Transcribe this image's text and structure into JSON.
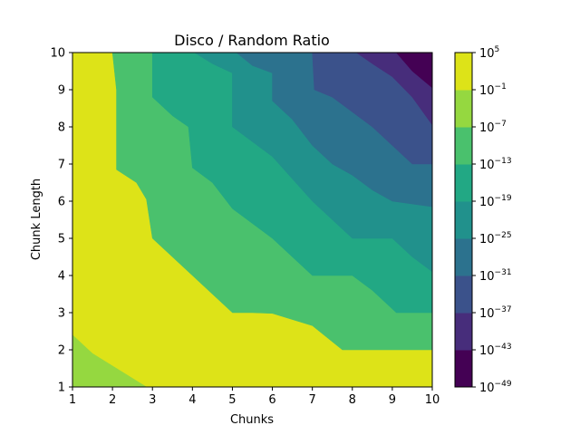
{
  "chart_data": {
    "type": "contour",
    "title": "Disco / Random Ratio",
    "xlabel": "Chunks",
    "ylabel": "Chunk Length",
    "xlim": [
      1,
      10
    ],
    "ylim": [
      1,
      10
    ],
    "x_ticks": [
      "1",
      "2",
      "3",
      "4",
      "5",
      "6",
      "7",
      "8",
      "9",
      "10"
    ],
    "y_ticks": [
      "1",
      "2",
      "3",
      "4",
      "5",
      "6",
      "7",
      "8",
      "9",
      "10"
    ],
    "z_scale": "log",
    "colorbar": {
      "levels_exponent": [
        -49,
        -43,
        -37,
        -31,
        -25,
        -19,
        -13,
        -7,
        -1,
        5
      ],
      "labels": [
        {
          "base": "10",
          "exp": "−49"
        },
        {
          "base": "10",
          "exp": "−43"
        },
        {
          "base": "10",
          "exp": "−37"
        },
        {
          "base": "10",
          "exp": "−31"
        },
        {
          "base": "10",
          "exp": "−25"
        },
        {
          "base": "10",
          "exp": "−19"
        },
        {
          "base": "10",
          "exp": "−13"
        },
        {
          "base": "10",
          "exp": "−7"
        },
        {
          "base": "10",
          "exp": "−1"
        },
        {
          "base": "10",
          "exp": "5"
        }
      ],
      "colors": [
        "#440154",
        "#472d7b",
        "#3b528b",
        "#2c728e",
        "#21918c",
        "#28ae80",
        "#5ec962",
        "#addc30",
        "#fde725"
      ],
      "display_colors": [
        "#440154",
        "#472d7b",
        "#3b528b",
        "#2c728e",
        "#21918c",
        "#22a884",
        "#4ac16d",
        "#95d840",
        "#dde318"
      ]
    },
    "contours": [
      {
        "upper_exponent": -1,
        "boundary": [
          [
            1,
            2.4
          ],
          [
            1.5,
            1.9
          ],
          [
            2.85,
            1
          ]
        ]
      },
      {
        "upper_exponent": -7,
        "boundary": [
          [
            2,
            10
          ],
          [
            2.1,
            9
          ],
          [
            2.1,
            6.85
          ],
          [
            2.6,
            6.5
          ],
          [
            2.85,
            6.05
          ],
          [
            3,
            5
          ],
          [
            3.5,
            4.5
          ],
          [
            4,
            4
          ],
          [
            4.5,
            3.5
          ],
          [
            5,
            3
          ],
          [
            5.5,
            3
          ],
          [
            6,
            2.98
          ],
          [
            7,
            2.65
          ],
          [
            7.75,
            2
          ],
          [
            10,
            2
          ]
        ]
      },
      {
        "upper_exponent": -13,
        "boundary": [
          [
            3,
            10
          ],
          [
            3,
            8.8
          ],
          [
            3.5,
            8.3
          ],
          [
            3.9,
            8
          ],
          [
            4,
            6.9
          ],
          [
            4.5,
            6.5
          ],
          [
            5,
            5.8
          ],
          [
            5.5,
            5.4
          ],
          [
            6,
            5
          ],
          [
            6.5,
            4.5
          ],
          [
            7,
            4
          ],
          [
            8,
            4
          ],
          [
            8.5,
            3.6
          ],
          [
            9,
            3.1
          ],
          [
            9.1,
            3
          ],
          [
            10,
            3
          ]
        ]
      },
      {
        "upper_exponent": -19,
        "boundary": [
          [
            4.05,
            10
          ],
          [
            4.5,
            9.7
          ],
          [
            5,
            9.45
          ],
          [
            5,
            8
          ],
          [
            5.5,
            7.6
          ],
          [
            6,
            7.2
          ],
          [
            6.5,
            6.6
          ],
          [
            7,
            6
          ],
          [
            7.5,
            5.5
          ],
          [
            8,
            5
          ],
          [
            9,
            5
          ],
          [
            9.5,
            4.5
          ],
          [
            10,
            4.1
          ]
        ]
      },
      {
        "upper_exponent": -25,
        "boundary": [
          [
            5.1,
            10
          ],
          [
            5.5,
            9.65
          ],
          [
            6,
            9.45
          ],
          [
            6,
            8.7
          ],
          [
            6.5,
            8.2
          ],
          [
            7,
            7.5
          ],
          [
            7.5,
            7
          ],
          [
            8,
            6.7
          ],
          [
            8.5,
            6.3
          ],
          [
            9,
            6
          ],
          [
            10,
            5.85
          ]
        ]
      },
      {
        "upper_exponent": -31,
        "boundary": [
          [
            7,
            10
          ],
          [
            7.05,
            9
          ],
          [
            7.5,
            8.8
          ],
          [
            8,
            8.4
          ],
          [
            8.5,
            8
          ],
          [
            9,
            7.5
          ],
          [
            9.5,
            7
          ],
          [
            10,
            7
          ]
        ]
      },
      {
        "upper_exponent": -37,
        "boundary": [
          [
            8.1,
            10
          ],
          [
            8.5,
            9.7
          ],
          [
            9,
            9.35
          ],
          [
            9.5,
            8.8
          ],
          [
            10,
            8.05
          ]
        ]
      },
      {
        "upper_exponent": -43,
        "boundary": [
          [
            9.1,
            10
          ],
          [
            9.5,
            9.5
          ],
          [
            10,
            9.05
          ]
        ]
      }
    ]
  }
}
